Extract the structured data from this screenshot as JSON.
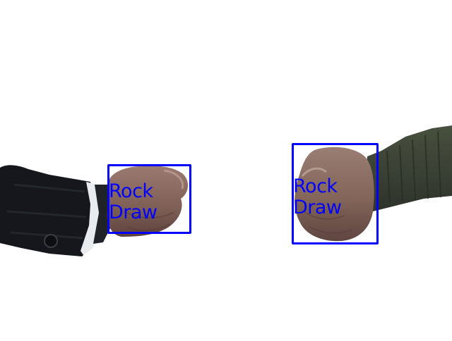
{
  "scene": {
    "background": "#ffffff",
    "subjects": [
      {
        "id": "left-hand",
        "gesture": "rock",
        "sleeve_color": "#15171c",
        "cuff_color": "#e8ecef",
        "skin_color": "#8a6a5f"
      },
      {
        "id": "right-hand",
        "gesture": "rock",
        "sleeve_color": "#3a4037",
        "skin_color": "#8c6e64"
      }
    ]
  },
  "detections": [
    {
      "class_label": "Rock",
      "status_label": "Draw",
      "box_color": "#0000ff"
    },
    {
      "class_label": "Rock",
      "status_label": "Draw",
      "box_color": "#0000ff"
    }
  ]
}
